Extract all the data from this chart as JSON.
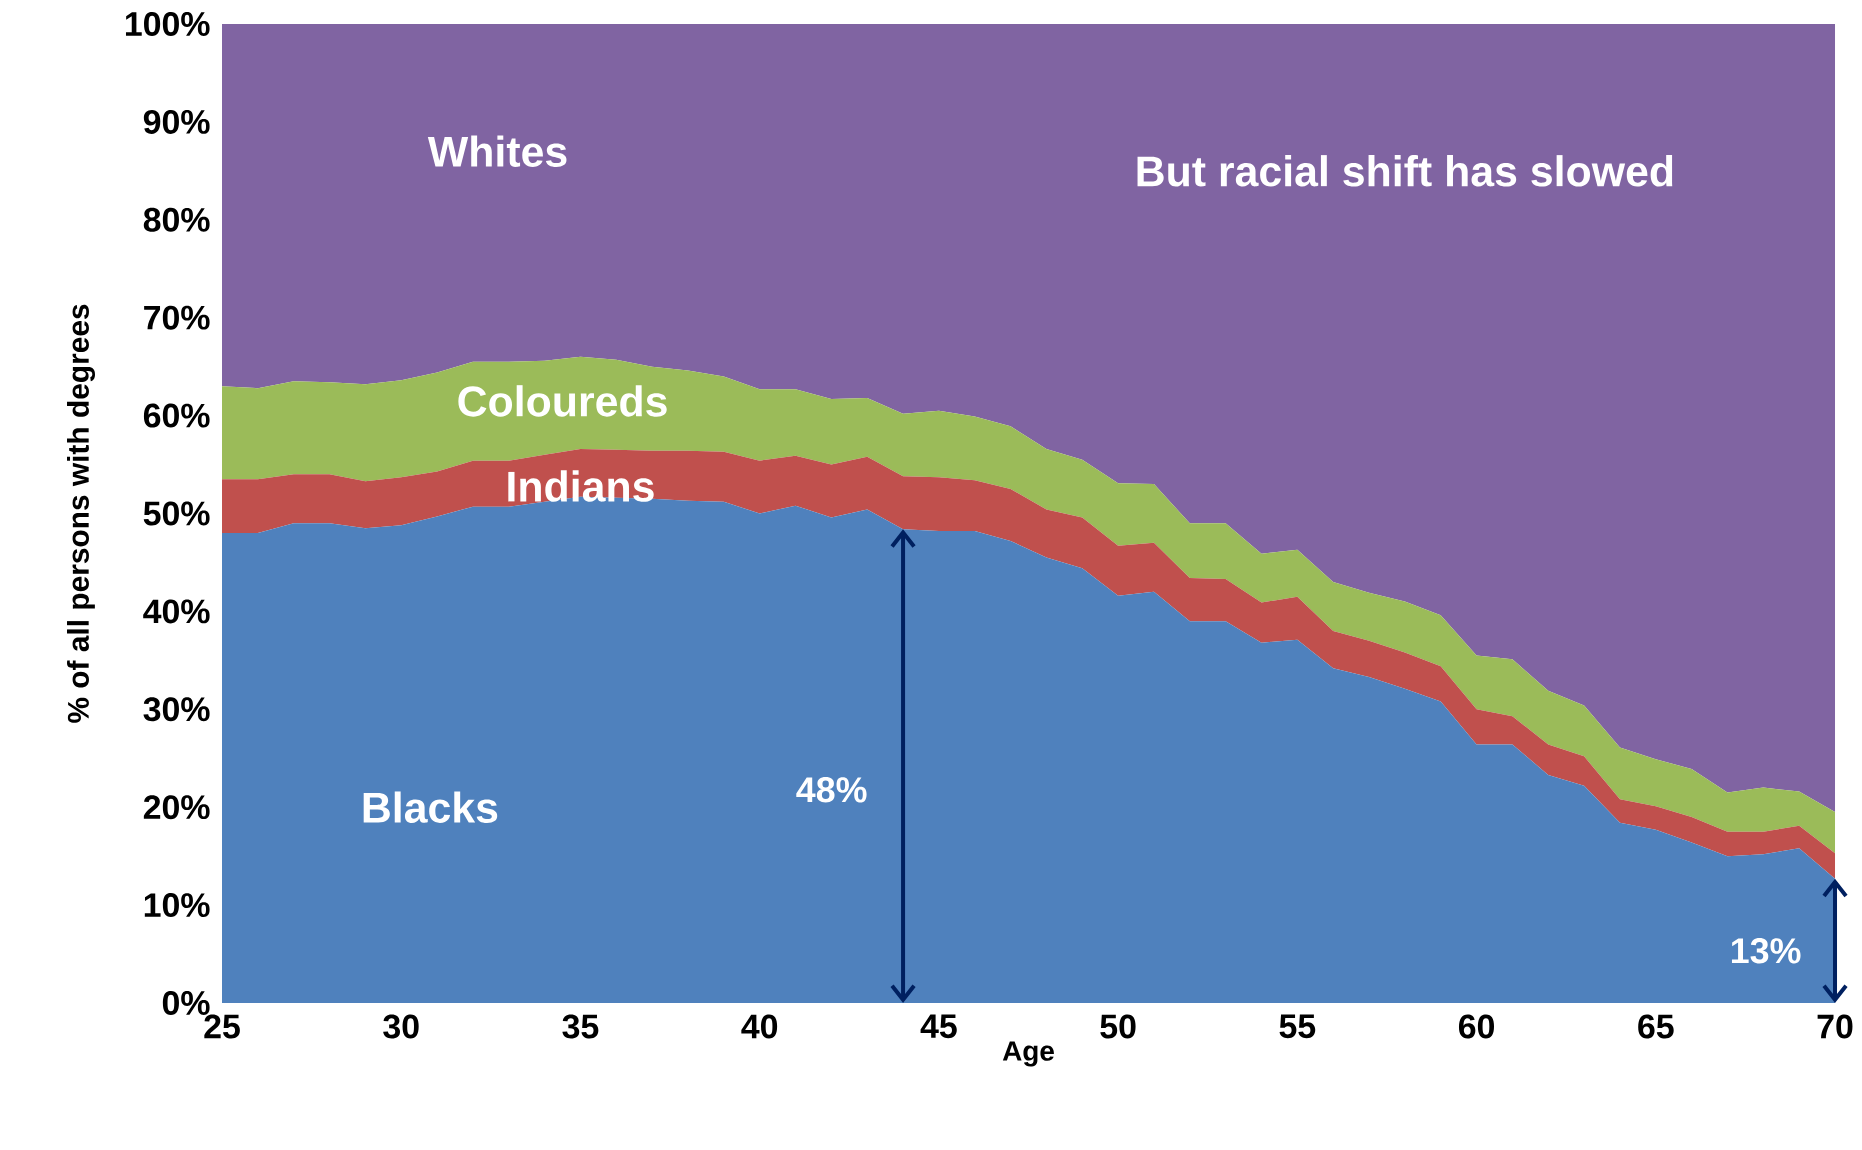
{
  "chart_data": {
    "type": "area",
    "stacked": true,
    "xlabel": "Age",
    "ylabel": "% of all persons with degrees",
    "x": [
      25,
      26,
      27,
      28,
      29,
      30,
      31,
      32,
      33,
      34,
      35,
      36,
      37,
      38,
      39,
      40,
      41,
      42,
      43,
      44,
      45,
      46,
      47,
      48,
      49,
      50,
      51,
      52,
      53,
      54,
      55,
      56,
      57,
      58,
      59,
      60,
      61,
      62,
      63,
      64,
      65,
      66,
      67,
      68,
      69,
      70
    ],
    "series": [
      {
        "name": "Blacks",
        "color": "#4f81bd",
        "values": [
          48,
          48,
          49,
          49,
          48.5,
          48.8,
          49.7,
          50.7,
          50.7,
          51.2,
          51.7,
          51.6,
          51.5,
          51.3,
          51.2,
          50,
          50.8,
          49.6,
          50.4,
          48.4,
          48.2,
          48.2,
          47.2,
          45.5,
          44.4,
          41.6,
          42,
          39,
          39,
          36.8,
          37.1,
          34.2,
          33.3,
          32.1,
          30.8,
          26.4,
          26.4,
          23.3,
          22.2,
          18.4,
          17.7,
          16.4,
          15,
          15.2,
          15.8,
          12.7
        ]
      },
      {
        "name": "Indians",
        "color": "#c0504d",
        "values": [
          5.5,
          5.5,
          5,
          5,
          4.8,
          4.9,
          4.6,
          4.7,
          4.7,
          4.8,
          4.9,
          4.9,
          4.9,
          5.1,
          5.1,
          5.4,
          5.1,
          5.4,
          5.4,
          5.4,
          5.5,
          5.2,
          5.3,
          4.9,
          5.2,
          5.1,
          5,
          4.4,
          4.3,
          4.1,
          4.4,
          3.8,
          3.7,
          3.7,
          3.6,
          3.6,
          2.9,
          3.1,
          3,
          2.4,
          2.4,
          2.6,
          2.5,
          2.3,
          2.3,
          2.6
        ]
      },
      {
        "name": "Coloureds",
        "color": "#9bbb59",
        "values": [
          9.5,
          9.3,
          9.5,
          9.4,
          9.9,
          9.9,
          10.1,
          10.1,
          10.1,
          9.6,
          9.4,
          9.2,
          8.6,
          8.2,
          7.7,
          7.3,
          6.8,
          6.7,
          6,
          6.4,
          6.8,
          6.5,
          6.4,
          6.2,
          5.9,
          6.4,
          6,
          5.6,
          5.7,
          5,
          4.8,
          5,
          4.9,
          5.2,
          5.2,
          5.5,
          5.8,
          5.5,
          5.2,
          5.3,
          4.8,
          4.9,
          4,
          4.5,
          3.5,
          4.2
        ]
      },
      {
        "name": "Whites",
        "color": "#8064a2",
        "values": [
          37,
          37.2,
          36.5,
          36.6,
          36.8,
          36.4,
          35.6,
          34.5,
          34.5,
          34.4,
          34,
          34.3,
          35,
          35.4,
          36,
          37.3,
          37.3,
          38.3,
          38.2,
          39.8,
          39.5,
          40.1,
          41.1,
          43.4,
          44.5,
          46.9,
          47,
          51,
          51,
          54.1,
          53.7,
          57,
          58.1,
          59,
          60.4,
          64.5,
          64.9,
          68.1,
          69.6,
          73.9,
          75.1,
          76.1,
          78.5,
          78,
          78.4,
          80.5
        ]
      }
    ],
    "xlim": [
      25,
      70
    ],
    "ylim": [
      0,
      100
    ],
    "xticks": [
      25,
      30,
      35,
      40,
      45,
      50,
      55,
      60,
      65,
      70
    ],
    "yticks": [
      {
        "value": 0,
        "label": "0%"
      },
      {
        "value": 10,
        "label": "10%"
      },
      {
        "value": 20,
        "label": "20%"
      },
      {
        "value": 30,
        "label": "30%"
      },
      {
        "value": 40,
        "label": "40%"
      },
      {
        "value": 50,
        "label": "50%"
      },
      {
        "value": 60,
        "label": "60%"
      },
      {
        "value": 70,
        "label": "70%"
      },
      {
        "value": 80,
        "label": "80%"
      },
      {
        "value": 90,
        "label": "90%"
      },
      {
        "value": 100,
        "label": "100%"
      }
    ],
    "grid": false,
    "legend": false,
    "annotations": [
      "But racial shift has slowed",
      "48%",
      "13%"
    ]
  }
}
